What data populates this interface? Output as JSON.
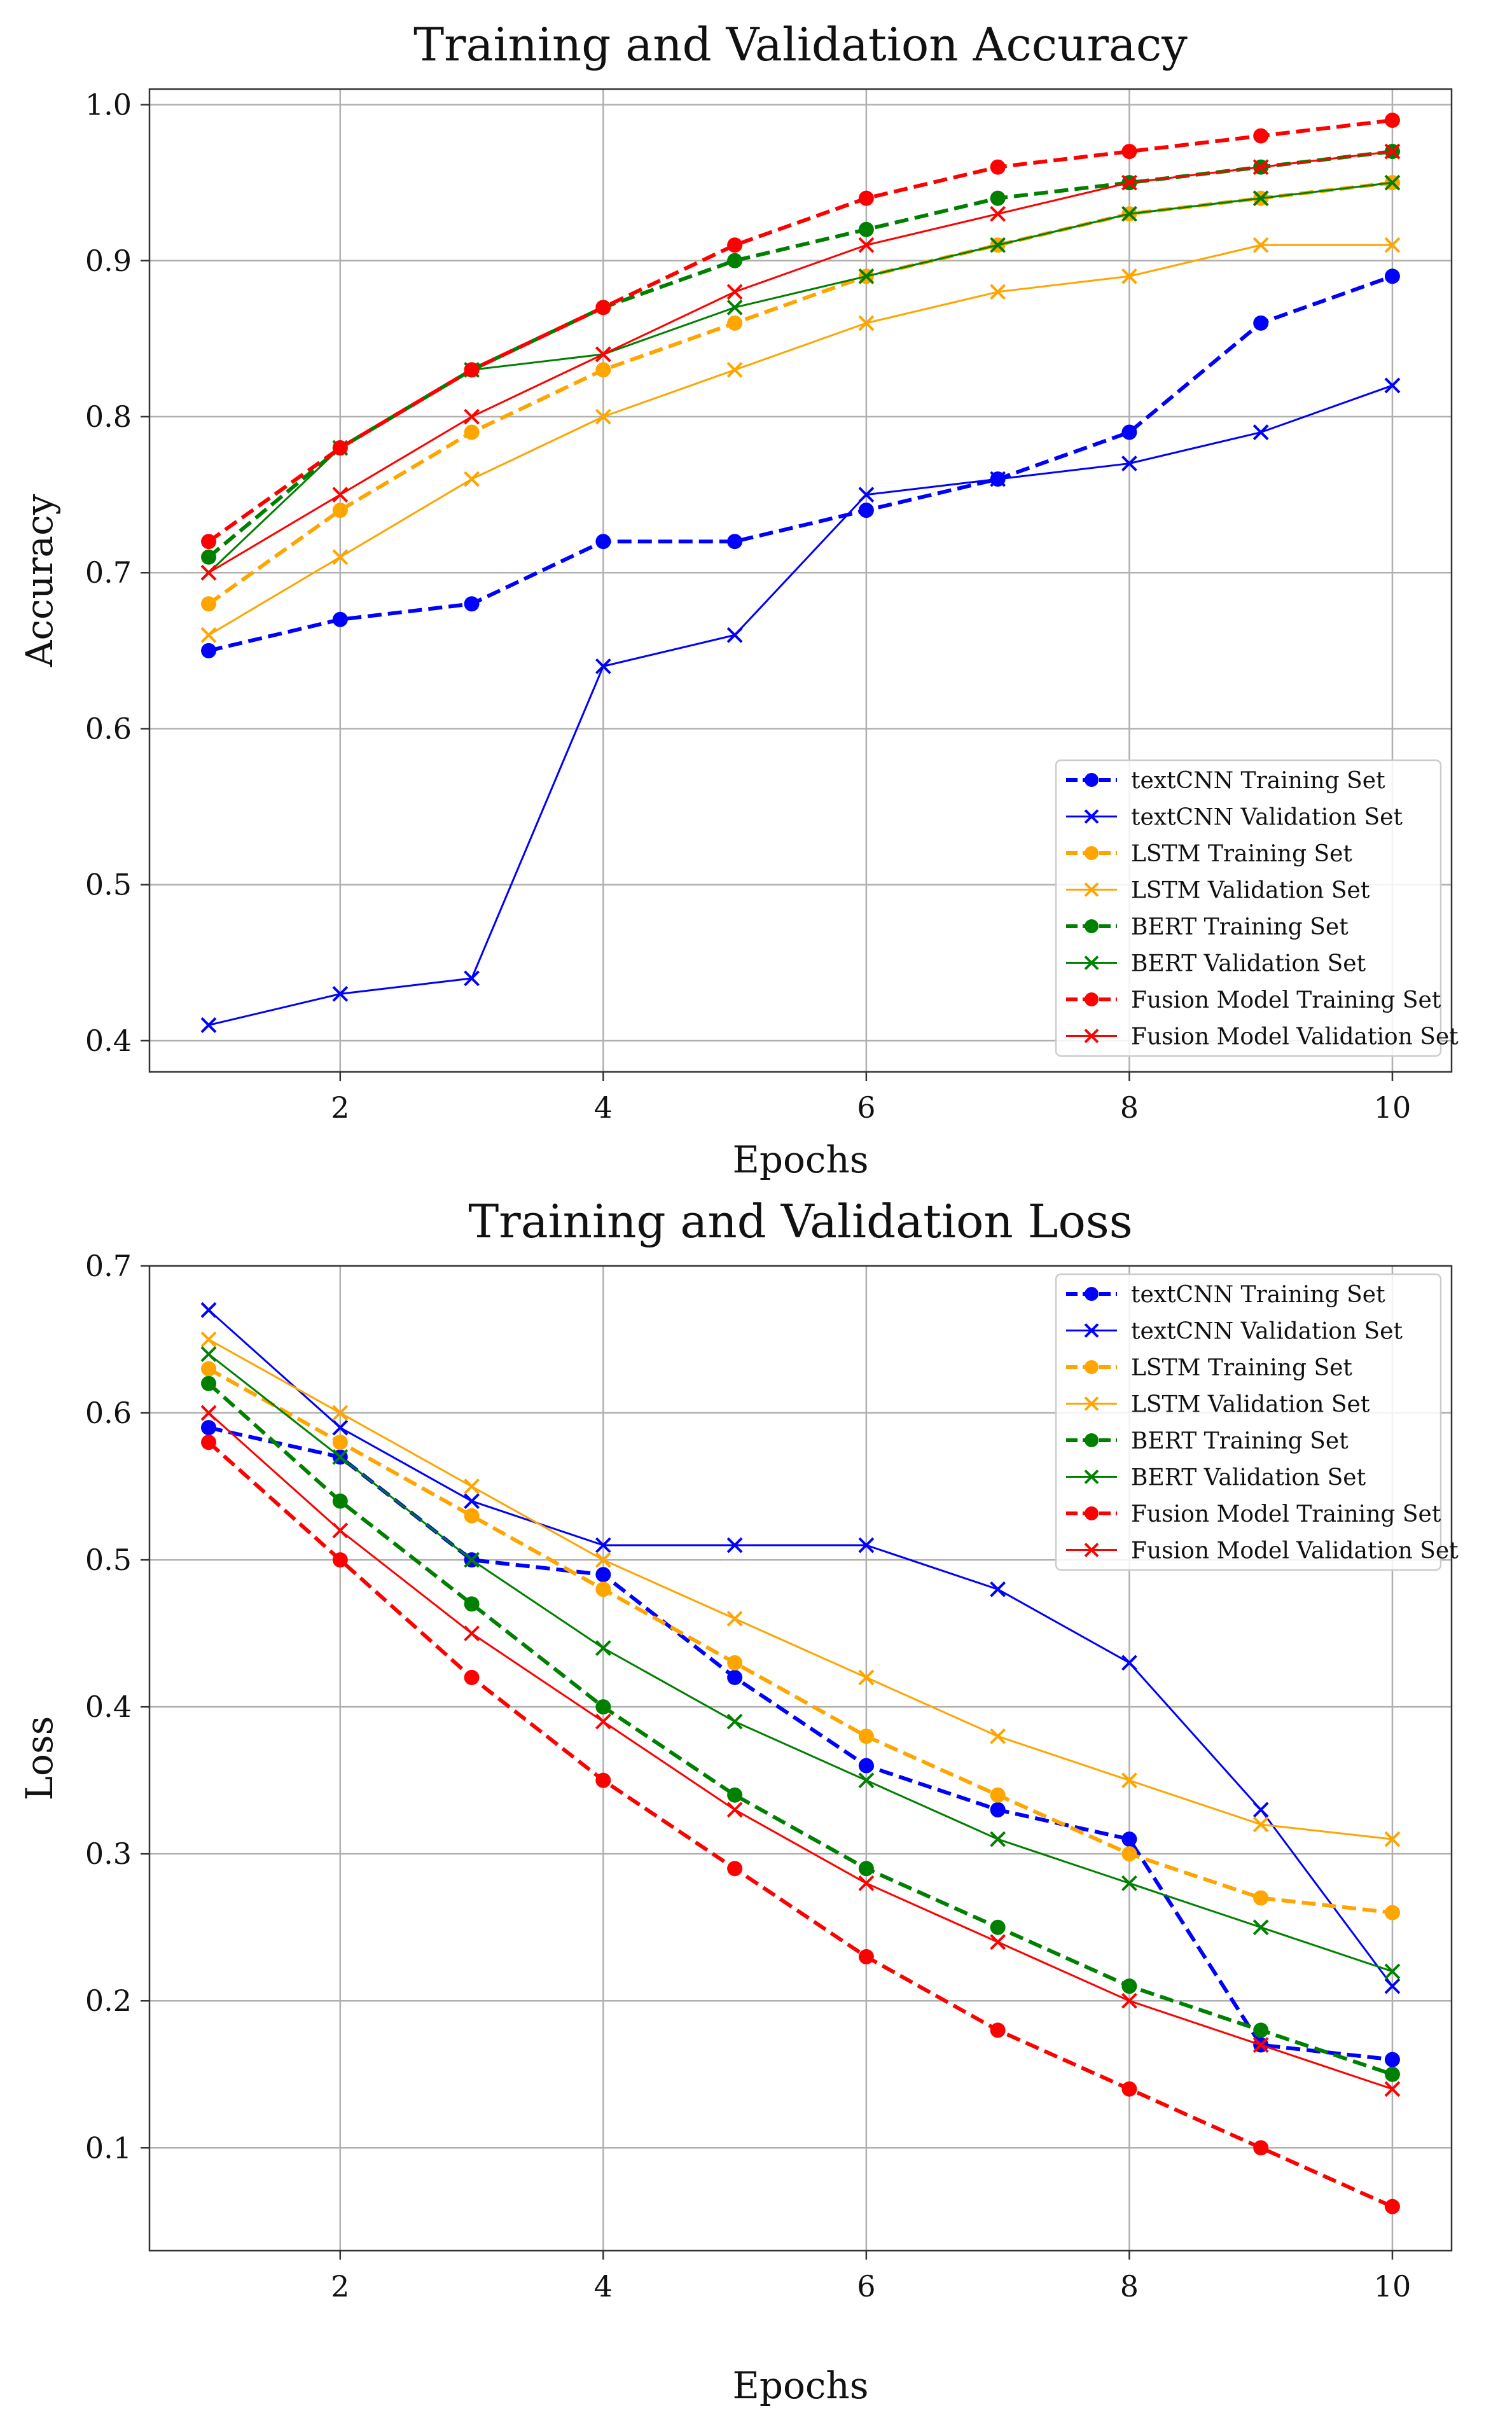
{
  "chart_data": [
    {
      "type": "line",
      "title": "Training and Validation Accuracy",
      "xlabel": "Epochs",
      "ylabel": "Accuracy",
      "xlim": [
        0.55,
        10.45
      ],
      "ylim": [
        0.38,
        1.01
      ],
      "xticks": [
        2,
        4,
        6,
        8,
        10
      ],
      "yticks": [
        0.4,
        0.5,
        0.6,
        0.7,
        0.8,
        0.9,
        1.0
      ],
      "ytick_decimals": 1,
      "grid": true,
      "legend_position": "lower-right",
      "x": [
        1,
        2,
        3,
        4,
        5,
        6,
        7,
        8,
        9,
        10
      ],
      "series": [
        {
          "name": "textCNN Training Set",
          "color": "#0000ff",
          "style": "dashed",
          "marker": "circle",
          "values": [
            0.65,
            0.67,
            0.68,
            0.72,
            0.72,
            0.74,
            0.76,
            0.79,
            0.86,
            0.89
          ]
        },
        {
          "name": "textCNN Validation Set",
          "color": "#0000ff",
          "style": "solid",
          "marker": "x",
          "values": [
            0.41,
            0.43,
            0.44,
            0.64,
            0.66,
            0.75,
            0.76,
            0.77,
            0.79,
            0.82
          ]
        },
        {
          "name": "LSTM Training Set",
          "color": "#ffa500",
          "style": "dashed",
          "marker": "circle",
          "values": [
            0.68,
            0.74,
            0.79,
            0.83,
            0.86,
            0.89,
            0.91,
            0.93,
            0.94,
            0.95
          ]
        },
        {
          "name": "LSTM Validation Set",
          "color": "#ffa500",
          "style": "solid",
          "marker": "x",
          "values": [
            0.66,
            0.71,
            0.76,
            0.8,
            0.83,
            0.86,
            0.88,
            0.89,
            0.91,
            0.91
          ]
        },
        {
          "name": "BERT Training Set",
          "color": "#008000",
          "style": "dashed",
          "marker": "circle",
          "values": [
            0.71,
            0.78,
            0.83,
            0.87,
            0.9,
            0.92,
            0.94,
            0.95,
            0.96,
            0.97
          ]
        },
        {
          "name": "BERT Validation Set",
          "color": "#008000",
          "style": "solid",
          "marker": "x",
          "values": [
            0.7,
            0.78,
            0.83,
            0.84,
            0.87,
            0.89,
            0.91,
            0.93,
            0.94,
            0.95
          ]
        },
        {
          "name": "Fusion Model Training Set",
          "color": "#ff0000",
          "style": "dashed",
          "marker": "circle",
          "values": [
            0.72,
            0.78,
            0.83,
            0.87,
            0.91,
            0.94,
            0.96,
            0.97,
            0.98,
            0.99
          ]
        },
        {
          "name": "Fusion Model Validation Set",
          "color": "#ff0000",
          "style": "solid",
          "marker": "x",
          "values": [
            0.7,
            0.75,
            0.8,
            0.84,
            0.88,
            0.91,
            0.93,
            0.95,
            0.96,
            0.97
          ]
        }
      ]
    },
    {
      "type": "line",
      "title": "Training and Validation Loss",
      "xlabel": "Epochs",
      "ylabel": "Loss",
      "xlim": [
        0.55,
        10.45
      ],
      "ylim": [
        0.03,
        0.7
      ],
      "xticks": [
        2,
        4,
        6,
        8,
        10
      ],
      "yticks": [
        0.1,
        0.2,
        0.3,
        0.4,
        0.5,
        0.6,
        0.7
      ],
      "ytick_decimals": 1,
      "grid": true,
      "legend_position": "upper-right",
      "x": [
        1,
        2,
        3,
        4,
        5,
        6,
        7,
        8,
        9,
        10
      ],
      "series": [
        {
          "name": "textCNN Training Set",
          "color": "#0000ff",
          "style": "dashed",
          "marker": "circle",
          "values": [
            0.59,
            0.57,
            0.5,
            0.49,
            0.42,
            0.36,
            0.33,
            0.31,
            0.17,
            0.16
          ]
        },
        {
          "name": "textCNN Validation Set",
          "color": "#0000ff",
          "style": "solid",
          "marker": "x",
          "values": [
            0.67,
            0.59,
            0.54,
            0.51,
            0.51,
            0.51,
            0.48,
            0.43,
            0.33,
            0.21
          ]
        },
        {
          "name": "LSTM Training Set",
          "color": "#ffa500",
          "style": "dashed",
          "marker": "circle",
          "values": [
            0.63,
            0.58,
            0.53,
            0.48,
            0.43,
            0.38,
            0.34,
            0.3,
            0.27,
            0.26
          ]
        },
        {
          "name": "LSTM Validation Set",
          "color": "#ffa500",
          "style": "solid",
          "marker": "x",
          "values": [
            0.65,
            0.6,
            0.55,
            0.5,
            0.46,
            0.42,
            0.38,
            0.35,
            0.32,
            0.31
          ]
        },
        {
          "name": "BERT Training Set",
          "color": "#008000",
          "style": "dashed",
          "marker": "circle",
          "values": [
            0.62,
            0.54,
            0.47,
            0.4,
            0.34,
            0.29,
            0.25,
            0.21,
            0.18,
            0.15
          ]
        },
        {
          "name": "BERT Validation Set",
          "color": "#008000",
          "style": "solid",
          "marker": "x",
          "values": [
            0.64,
            0.57,
            0.5,
            0.44,
            0.39,
            0.35,
            0.31,
            0.28,
            0.25,
            0.22
          ]
        },
        {
          "name": "Fusion Model Training Set",
          "color": "#ff0000",
          "style": "dashed",
          "marker": "circle",
          "values": [
            0.58,
            0.5,
            0.42,
            0.35,
            0.29,
            0.23,
            0.18,
            0.14,
            0.1,
            0.06
          ]
        },
        {
          "name": "Fusion Model Validation Set",
          "color": "#ff0000",
          "style": "solid",
          "marker": "x",
          "values": [
            0.6,
            0.52,
            0.45,
            0.39,
            0.33,
            0.28,
            0.24,
            0.2,
            0.17,
            0.14
          ]
        }
      ]
    }
  ]
}
